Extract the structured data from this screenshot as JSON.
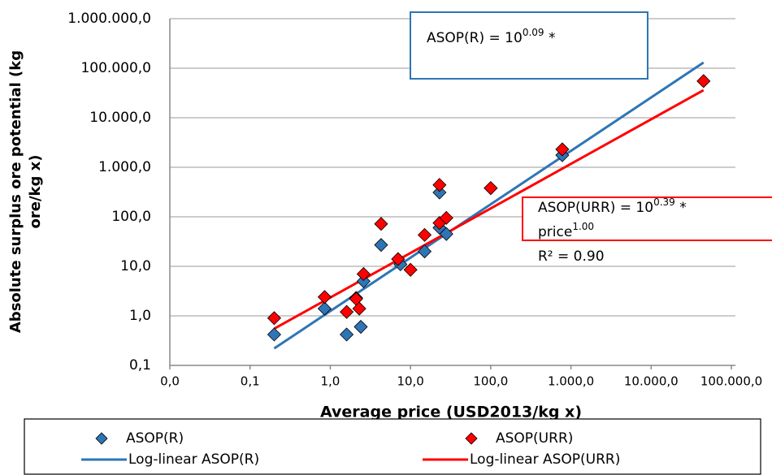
{
  "chart_data": {
    "type": "scatter",
    "xlabel": "Average price (USD2013/kg x)",
    "ylabel": [
      "Absolute surplus ore potential (kg",
      "ore/kg x)"
    ],
    "log_x": true,
    "log_y": true,
    "grid": true,
    "xlim": [
      0.01,
      100000
    ],
    "ylim": [
      0.1,
      1000000
    ],
    "xticks": [
      {
        "value": 0.01,
        "label": "0,0"
      },
      {
        "value": 0.1,
        "label": "0,1"
      },
      {
        "value": 1,
        "label": "1,0"
      },
      {
        "value": 10,
        "label": "10,0"
      },
      {
        "value": 100,
        "label": "100,0"
      },
      {
        "value": 1000,
        "label": "1.000,0"
      },
      {
        "value": 10000,
        "label": "10.000,0"
      },
      {
        "value": 100000,
        "label": "100.000,0"
      }
    ],
    "yticks": [
      {
        "value": 0.1,
        "label": "0,1"
      },
      {
        "value": 1,
        "label": "1,0"
      },
      {
        "value": 10,
        "label": "10,0"
      },
      {
        "value": 100,
        "label": "100,0"
      },
      {
        "value": 1000,
        "label": "1.000,0"
      },
      {
        "value": 10000,
        "label": "10.000,0"
      },
      {
        "value": 100000,
        "label": "100.000,0"
      },
      {
        "value": 1000000,
        "label": "1.000.000,0"
      }
    ],
    "series": [
      {
        "name": "ASOP(R)",
        "color": "#2e75b6",
        "marker": "diamond",
        "x": [
          0.2,
          0.85,
          1.6,
          2.1,
          2.4,
          2.6,
          4.3,
          7.5,
          15,
          23,
          23,
          28,
          100,
          780
        ],
        "values": [
          0.42,
          1.4,
          0.42,
          2.3,
          0.6,
          5,
          27,
          11,
          20,
          310,
          60,
          45,
          380,
          1750
        ]
      },
      {
        "name": "ASOP(URR)",
        "color": "#ff0000",
        "marker": "diamond",
        "x": [
          0.2,
          0.85,
          1.6,
          2.1,
          2.3,
          2.6,
          4.3,
          7,
          10,
          15,
          23,
          23,
          28,
          100,
          780,
          45000
        ],
        "values": [
          0.9,
          2.4,
          1.2,
          2.2,
          1.4,
          7,
          72,
          14,
          8.5,
          43,
          75,
          440,
          95,
          380,
          2300,
          55000
        ]
      },
      {
        "name": "Log-linear ASOP(R)",
        "color": "#2e75b6",
        "marker": "line",
        "x": [
          0.2,
          45000
        ],
        "values": [
          0.22,
          130000
        ]
      },
      {
        "name": "Log-linear ASOP(URR)",
        "color": "#ff0000",
        "marker": "line",
        "x": [
          0.2,
          45000
        ],
        "values": [
          0.55,
          36000
        ]
      }
    ],
    "annotations": [
      {
        "color": "#2e75b6",
        "lines": [
          [
            "ASOP(R) = 10",
            "0.09",
            " *"
          ]
        ]
      },
      {
        "color": "#ff0000",
        "lines": [
          [
            "ASOP(URR) = 10",
            "0.39",
            " *"
          ],
          [
            "price",
            "1.00"
          ],
          [
            "R² = 0.90"
          ]
        ]
      }
    ]
  }
}
